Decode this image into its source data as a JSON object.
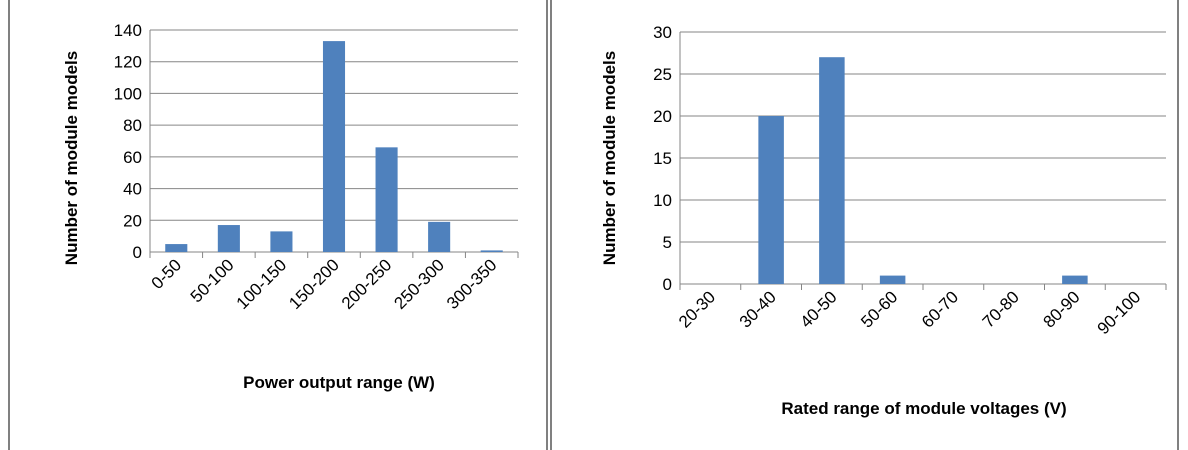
{
  "chart_data": [
    {
      "type": "bar",
      "categories": [
        "0-50",
        "50-100",
        "100-150",
        "150-200",
        "200-250",
        "250-300",
        "300-350"
      ],
      "values": [
        5,
        17,
        13,
        133,
        66,
        19,
        1
      ],
      "xlabel": "Power output range (W)",
      "ylabel": "Number of module models",
      "ylim": [
        0,
        140
      ],
      "yticks": [
        0,
        20,
        40,
        60,
        80,
        100,
        120,
        140
      ],
      "grid": true,
      "bar_color": "#4f81bd"
    },
    {
      "type": "bar",
      "categories": [
        "20-30",
        "30-40",
        "40-50",
        "50-60",
        "60-70",
        "70-80",
        "80-90",
        "90-100"
      ],
      "values": [
        0,
        20,
        27,
        1,
        0,
        0,
        1,
        0
      ],
      "xlabel": "Rated range of module voltages (V)",
      "ylabel": "Number of module models",
      "ylim": [
        0,
        30
      ],
      "yticks": [
        0,
        5,
        10,
        15,
        20,
        25,
        30
      ],
      "grid": true,
      "bar_color": "#4f81bd"
    }
  ]
}
